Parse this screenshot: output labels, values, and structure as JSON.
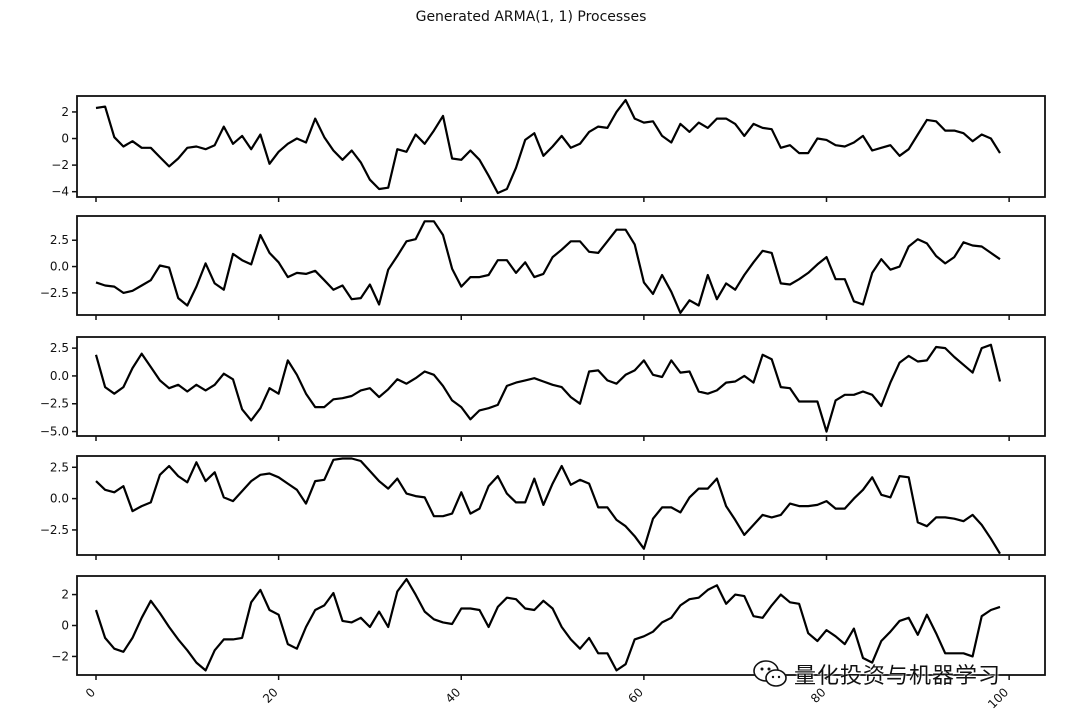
{
  "chart_data": {
    "type": "line",
    "title": "Generated ARMA(1, 1) Processes",
    "x_ticks": [
      "0",
      "20",
      "40",
      "60",
      "80",
      "100"
    ],
    "x_range": [
      0,
      99
    ],
    "line_color": "#000000",
    "grid": false,
    "subplots": [
      {
        "ylim": [
          -4.4,
          3.2
        ],
        "y_ticks": [
          2,
          0,
          -2,
          -4
        ],
        "y_tick_labels": [
          "2",
          "0",
          "−2",
          "−4"
        ],
        "values": [
          2.3,
          2.4,
          0.1,
          -0.6,
          -0.2,
          -0.7,
          -0.7,
          -1.4,
          -2.1,
          -1.5,
          -0.7,
          -0.6,
          -0.8,
          -0.5,
          0.9,
          -0.4,
          0.2,
          -0.8,
          0.3,
          -1.9,
          -1.0,
          -0.4,
          0.0,
          -0.3,
          1.5,
          0.1,
          -0.9,
          -1.6,
          -0.9,
          -1.8,
          -3.1,
          -3.8,
          -3.7,
          -0.8,
          -1.0,
          0.3,
          -0.4,
          0.6,
          1.7,
          -1.5,
          -1.6,
          -0.9,
          -1.6,
          -2.8,
          -4.1,
          -3.8,
          -2.2,
          -0.1,
          0.4,
          -1.3,
          -0.6,
          0.2,
          -0.7,
          -0.4,
          0.5,
          0.9,
          0.8,
          2.0,
          2.9,
          1.5,
          1.2,
          1.3,
          0.2,
          -0.3,
          1.1,
          0.5,
          1.2,
          0.8,
          1.5,
          1.5,
          1.1,
          0.2,
          1.1,
          0.8,
          0.7,
          -0.7,
          -0.5,
          -1.1,
          -1.1,
          0.0,
          -0.1,
          -0.5,
          -0.6,
          -0.3,
          0.2,
          -0.9,
          -0.7,
          -0.5,
          -1.3,
          -0.8,
          0.3,
          1.4,
          1.3,
          0.6,
          0.6,
          0.4,
          -0.2,
          0.3,
          0.0,
          -1.1
        ]
      },
      {
        "ylim": [
          -4.6,
          4.8
        ],
        "y_ticks": [
          2.5,
          0.0,
          -2.5
        ],
        "y_tick_labels": [
          "2.5",
          "0.0",
          "−2.5"
        ],
        "values": [
          -1.5,
          -1.8,
          -1.9,
          -2.5,
          -2.3,
          -1.8,
          -1.3,
          0.1,
          -0.1,
          -3.0,
          -3.7,
          -1.9,
          0.3,
          -1.6,
          -2.2,
          1.2,
          0.6,
          0.2,
          3.0,
          1.3,
          0.4,
          -1.0,
          -0.6,
          -0.7,
          -0.4,
          -1.3,
          -2.2,
          -1.8,
          -3.1,
          -3.0,
          -1.7,
          -3.6,
          -0.3,
          1.0,
          2.4,
          2.6,
          4.3,
          4.3,
          3.0,
          -0.2,
          -1.9,
          -1.0,
          -1.0,
          -0.8,
          0.6,
          0.6,
          -0.6,
          0.4,
          -1.0,
          -0.7,
          0.9,
          1.6,
          2.4,
          2.4,
          1.4,
          1.3,
          2.4,
          3.5,
          3.5,
          2.1,
          -1.5,
          -2.6,
          -0.8,
          -2.4,
          -4.4,
          -3.2,
          -3.7,
          -0.8,
          -3.1,
          -1.6,
          -2.2,
          -0.8,
          0.4,
          1.5,
          1.3,
          -1.6,
          -1.7,
          -1.2,
          -0.6,
          0.2,
          0.9,
          -1.2,
          -1.2,
          -3.3,
          -3.6,
          -0.6,
          0.7,
          -0.3,
          0.0,
          1.9,
          2.6,
          2.2,
          1.0,
          0.3,
          0.9,
          2.3,
          2.0,
          1.9,
          1.3,
          0.7
        ]
      },
      {
        "ylim": [
          -5.4,
          3.5
        ],
        "y_ticks": [
          2.5,
          0.0,
          -2.5,
          -5.0
        ],
        "y_tick_labels": [
          "2.5",
          "0.0",
          "−2.5",
          "−5.0"
        ],
        "values": [
          1.9,
          -1.0,
          -1.6,
          -1.0,
          0.7,
          2.0,
          0.8,
          -0.4,
          -1.1,
          -0.8,
          -1.4,
          -0.8,
          -1.3,
          -0.8,
          0.2,
          -0.3,
          -3.0,
          -4.0,
          -2.9,
          -1.1,
          -1.6,
          1.4,
          0.1,
          -1.6,
          -2.8,
          -2.8,
          -2.1,
          -2.0,
          -1.8,
          -1.3,
          -1.1,
          -1.9,
          -1.2,
          -0.3,
          -0.7,
          -0.2,
          0.4,
          0.1,
          -0.9,
          -2.2,
          -2.8,
          -3.9,
          -3.1,
          -2.9,
          -2.6,
          -0.9,
          -0.6,
          -0.4,
          -0.2,
          -0.5,
          -0.8,
          -1.0,
          -1.9,
          -2.5,
          0.4,
          0.5,
          -0.4,
          -0.7,
          0.1,
          0.5,
          1.4,
          0.1,
          -0.1,
          1.4,
          0.3,
          0.4,
          -1.4,
          -1.6,
          -1.3,
          -0.6,
          -0.5,
          0.0,
          -0.6,
          1.9,
          1.5,
          -1.0,
          -1.1,
          -2.3,
          -2.3,
          -2.3,
          -5.0,
          -2.2,
          -1.7,
          -1.7,
          -1.4,
          -1.7,
          -2.7,
          -0.6,
          1.2,
          1.8,
          1.3,
          1.4,
          2.6,
          2.5,
          1.7,
          1.0,
          0.3,
          2.5,
          2.8,
          -0.5
        ]
      },
      {
        "ylim": [
          -4.5,
          3.4
        ],
        "y_ticks": [
          2.5,
          0.0,
          -2.5
        ],
        "y_tick_labels": [
          "2.5",
          "0.0",
          "−2.5"
        ],
        "values": [
          1.4,
          0.7,
          0.5,
          1.0,
          -1.0,
          -0.6,
          -0.3,
          1.9,
          2.6,
          1.8,
          1.3,
          2.9,
          1.4,
          2.1,
          0.1,
          -0.2,
          0.6,
          1.4,
          1.9,
          2.0,
          1.7,
          1.2,
          0.7,
          -0.4,
          1.4,
          1.5,
          3.1,
          3.2,
          3.2,
          3.0,
          2.2,
          1.4,
          0.8,
          1.6,
          0.4,
          0.2,
          0.1,
          -1.4,
          -1.4,
          -1.2,
          0.5,
          -1.2,
          -0.8,
          1.0,
          1.8,
          0.4,
          -0.3,
          -0.3,
          1.6,
          -0.5,
          1.2,
          2.6,
          1.1,
          1.5,
          1.2,
          -0.7,
          -0.7,
          -1.7,
          -2.2,
          -3.0,
          -4.0,
          -1.6,
          -0.7,
          -0.7,
          -1.1,
          0.1,
          0.8,
          0.8,
          1.6,
          -0.6,
          -1.7,
          -2.9,
          -2.1,
          -1.3,
          -1.5,
          -1.3,
          -0.4,
          -0.6,
          -0.6,
          -0.5,
          -0.2,
          -0.8,
          -0.8,
          0.0,
          0.7,
          1.7,
          0.3,
          0.1,
          1.8,
          1.7,
          -1.9,
          -2.2,
          -1.5,
          -1.5,
          -1.6,
          -1.8,
          -1.3,
          -2.1,
          -3.2,
          -4.4
        ]
      },
      {
        "ylim": [
          -3.2,
          3.2
        ],
        "y_ticks": [
          2,
          0,
          -2
        ],
        "y_tick_labels": [
          "2",
          "0",
          "−2"
        ],
        "values": [
          1.0,
          -0.8,
          -1.5,
          -1.7,
          -0.8,
          0.5,
          1.6,
          0.8,
          -0.1,
          -0.9,
          -1.6,
          -2.4,
          -2.9,
          -1.6,
          -0.9,
          -0.9,
          -0.8,
          1.5,
          2.3,
          1.0,
          0.7,
          -1.2,
          -1.5,
          -0.1,
          1.0,
          1.3,
          2.1,
          0.3,
          0.2,
          0.5,
          -0.1,
          0.9,
          -0.1,
          2.2,
          3.0,
          2.0,
          0.9,
          0.4,
          0.2,
          0.1,
          1.1,
          1.1,
          1.0,
          -0.1,
          1.2,
          1.8,
          1.7,
          1.1,
          1.0,
          1.6,
          1.1,
          -0.1,
          -0.9,
          -1.5,
          -0.8,
          -1.8,
          -1.8,
          -2.9,
          -2.5,
          -0.9,
          -0.7,
          -0.4,
          0.2,
          0.5,
          1.3,
          1.7,
          1.8,
          2.3,
          2.6,
          1.4,
          2.0,
          1.9,
          0.6,
          0.5,
          1.3,
          2.0,
          1.5,
          1.4,
          -0.5,
          -1.0,
          -0.3,
          -0.7,
          -1.2,
          -0.2,
          -2.1,
          -2.4,
          -1.0,
          -0.4,
          0.3,
          0.5,
          -0.6,
          0.7,
          -0.5,
          -1.8,
          -1.8,
          -1.8,
          -2.0,
          0.6,
          1.0,
          1.2
        ]
      }
    ]
  },
  "watermark": {
    "text": "量化投资与机器学习",
    "icon": "wechat-icon"
  }
}
